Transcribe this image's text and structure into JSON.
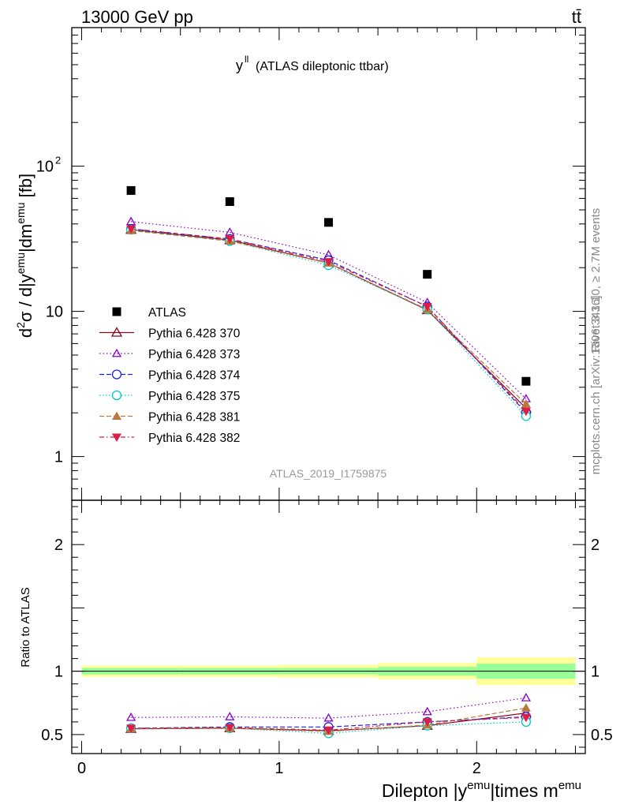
{
  "header": {
    "energy_label": "13000 GeV pp",
    "process_label": "tt̄"
  },
  "side_text": {
    "rivet": "Rivet 3.1.10, ≥ 2.7M events",
    "source": "mcplots.cern.ch [arXiv:1306.3436]"
  },
  "colors": {
    "data": "#000000",
    "s370": "#8b0a1e",
    "s373": "#8a00c8",
    "s374": "#2222dd",
    "s375": "#00c8c8",
    "s381": "#b87a3c",
    "s382": "#dc1e46",
    "band_outer": "#ffff99",
    "band_inner": "#99ff99",
    "watermark": "#999999",
    "side_text": "#888888"
  },
  "chart_data": [
    {
      "type": "line",
      "panel": "main",
      "title": "y",
      "title_sup": "ll",
      "title_suffix": "(ATLAS dileptonic ttbar)",
      "ylabel_parts": [
        "d",
        "2",
        "σ / d|y",
        "emu",
        "|dm",
        "emu",
        " [fb]"
      ],
      "yscale": "log",
      "ylim": [
        0.5,
        900
      ],
      "xlim": [
        -0.05,
        2.55
      ],
      "y_ticks": [
        {
          "value": 1,
          "label": "1"
        },
        {
          "value": 10,
          "label": "10"
        },
        {
          "value": 100,
          "label": "10",
          "sup": "2"
        }
      ],
      "watermark": "ATLAS_2019_I1759875",
      "legend_position": "center-left",
      "x": [
        0.25,
        0.75,
        1.25,
        1.75,
        2.25
      ],
      "bins": [
        [
          0.0,
          0.5
        ],
        [
          0.5,
          1.0
        ],
        [
          1.0,
          1.5
        ],
        [
          1.5,
          2.0
        ],
        [
          2.0,
          2.5
        ]
      ],
      "series": [
        {
          "name": "ATLAS",
          "key": "data",
          "marker": "square",
          "values": [
            68,
            57,
            41,
            18,
            3.3
          ]
        },
        {
          "name": "Pythia 6.428 370",
          "key": "s370",
          "marker": "triangle-open",
          "dash": "",
          "values": [
            36.5,
            31,
            21.5,
            10.2,
            2.15
          ]
        },
        {
          "name": "Pythia 6.428 373",
          "key": "s373",
          "marker": "triangle-open-small",
          "dash": "1.5,3",
          "values": [
            41.5,
            35,
            24.5,
            11.5,
            2.5
          ]
        },
        {
          "name": "Pythia 6.428 374",
          "key": "s374",
          "marker": "circle-open",
          "dash": "6,3",
          "values": [
            37,
            31.5,
            22.5,
            10.8,
            2.0
          ]
        },
        {
          "name": "Pythia 6.428 375",
          "key": "s375",
          "marker": "circle-open",
          "dash": "1.5,2.5",
          "values": [
            36.5,
            30.5,
            20.8,
            10.3,
            1.9
          ]
        },
        {
          "name": "Pythia 6.428 381",
          "key": "s381",
          "marker": "triangle-filled",
          "dash": "6,3",
          "values": [
            36,
            30.5,
            21.5,
            10.3,
            2.3
          ]
        },
        {
          "name": "Pythia 6.428 382",
          "key": "s382",
          "marker": "triangle-down-filled",
          "dash": "6,3,1.5,3",
          "values": [
            37,
            31.5,
            22,
            10.8,
            2.05
          ]
        }
      ]
    },
    {
      "type": "line",
      "panel": "ratio",
      "ylabel": "Ratio to ATLAS",
      "xlabel_parts": [
        "Dilepton |y",
        "emu",
        "|times m",
        "emu"
      ],
      "ylim": [
        0.35,
        2.35
      ],
      "xlim": [
        -0.05,
        2.55
      ],
      "y_ticks": [
        {
          "value": 0.5,
          "label": "0.5"
        },
        {
          "value": 1,
          "label": "1"
        },
        {
          "value": 2,
          "label": "2"
        }
      ],
      "x_ticks": [
        {
          "value": 0,
          "label": "0"
        },
        {
          "value": 1,
          "label": "1"
        },
        {
          "value": 2,
          "label": "2"
        }
      ],
      "bands": [
        {
          "x0": 0.0,
          "x1": 0.5,
          "outer": 0.045,
          "inner": 0.025
        },
        {
          "x0": 0.5,
          "x1": 1.0,
          "outer": 0.045,
          "inner": 0.025
        },
        {
          "x0": 1.0,
          "x1": 1.5,
          "outer": 0.05,
          "inner": 0.025
        },
        {
          "x0": 1.5,
          "x1": 2.0,
          "outer": 0.065,
          "inner": 0.035
        },
        {
          "x0": 2.0,
          "x1": 2.5,
          "outer": 0.11,
          "inner": 0.06
        }
      ],
      "x": [
        0.25,
        0.75,
        1.25,
        1.75,
        2.25
      ],
      "series": [
        {
          "key": "s370",
          "marker": "triangle-open",
          "dash": "",
          "values": [
            0.545,
            0.55,
            0.53,
            0.57,
            0.67
          ]
        },
        {
          "key": "s373",
          "marker": "triangle-open-small",
          "dash": "1.5,3",
          "values": [
            0.635,
            0.64,
            0.63,
            0.68,
            0.79
          ]
        },
        {
          "key": "s374",
          "marker": "circle-open",
          "dash": "6,3",
          "values": [
            0.55,
            0.56,
            0.56,
            0.6,
            0.64
          ]
        },
        {
          "key": "s375",
          "marker": "circle-open",
          "dash": "1.5,2.5",
          "values": [
            0.55,
            0.55,
            0.51,
            0.57,
            0.6
          ]
        },
        {
          "key": "s381",
          "marker": "triangle-filled",
          "dash": "6,3",
          "values": [
            0.545,
            0.55,
            0.525,
            0.575,
            0.71
          ]
        },
        {
          "key": "s382",
          "marker": "triangle-down-filled",
          "dash": "6,3,1.5,3",
          "values": [
            0.55,
            0.555,
            0.535,
            0.6,
            0.635
          ]
        }
      ]
    }
  ]
}
